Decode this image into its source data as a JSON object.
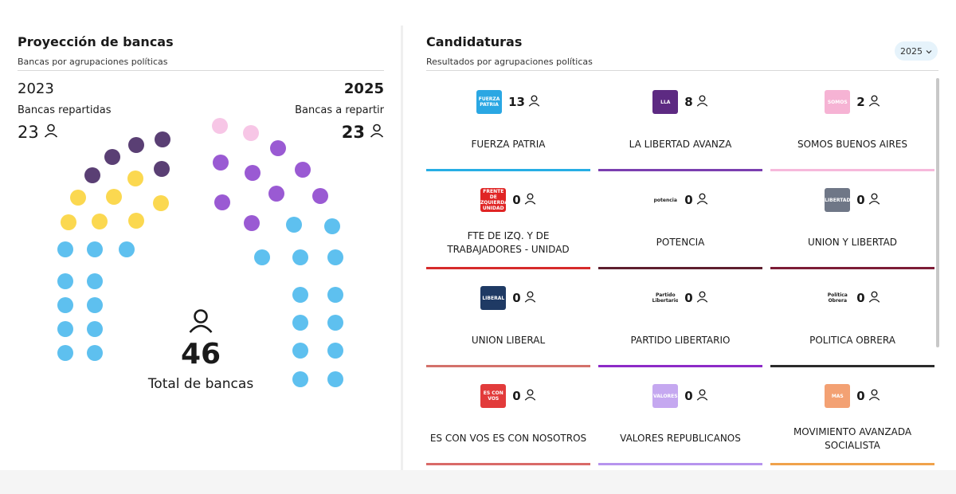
{
  "left": {
    "title": "Proyección de bancas",
    "subtitle": "Bancas por agrupaciones políticas",
    "year_prev": "2023",
    "year_next": "2025",
    "label_prev": "Bancas repartidas",
    "label_next": "Bancas a repartir",
    "count_prev": "23",
    "count_next": "23",
    "total_number": "46",
    "total_label": "Total de bancas",
    "person_icon": "person-icon"
  },
  "seat_colors": {
    "fuerza_patria": "#5ec0ef",
    "libertad_avanza": "#9a5ad3",
    "somos": "#f7c6e6",
    "prev_yellow": "#fbd850",
    "prev_dark": "#5a3f74",
    "text": "#1a1a1a"
  },
  "right": {
    "title": "Candidaturas",
    "subtitle": "Resultados por agrupaciones políticas",
    "year_select_value": "2025",
    "year_select_icon": "chevron-down-icon"
  },
  "parties": [
    {
      "name": "FUERZA PATRIA",
      "seats": "13",
      "bar_color": "#27aee4",
      "logo_bg": "#2aa7e3",
      "logo_text": "FUERZA PATRIA"
    },
    {
      "name": "LA LIBERTAD AVANZA",
      "seats": "8",
      "bar_color": "#7b3fb0",
      "logo_bg": "#5d2a82",
      "logo_text": "LLA"
    },
    {
      "name": "SOMOS BUENOS AIRES",
      "seats": "2",
      "bar_color": "#f6b9db",
      "logo_bg": "#f6b3d4",
      "logo_text": "SOMOS"
    },
    {
      "name": "FTE DE IZQ. Y DE TRABAJADORES - UNIDAD",
      "seats": "0",
      "bar_color": "#d62b2b",
      "logo_bg": "#e02424",
      "logo_text": "FRENTE DE IZQUIERDA UNIDAD"
    },
    {
      "name": "POTENCIA",
      "seats": "0",
      "bar_color": "#5e1f2e",
      "logo_bg": "#ffffff",
      "logo_text": "potencia"
    },
    {
      "name": "UNION Y LIBERTAD",
      "seats": "0",
      "bar_color": "#7d1c36",
      "logo_bg": "#6f7787",
      "logo_text": "LIBERTAD"
    },
    {
      "name": "UNION LIBERAL",
      "seats": "0",
      "bar_color": "#d3716b",
      "logo_bg": "#1f3a64",
      "logo_text": "LIBERAL"
    },
    {
      "name": "PARTIDO LIBERTARIO",
      "seats": "0",
      "bar_color": "#8d2ac7",
      "logo_bg": "#ffffff",
      "logo_text": "Partido Libertario"
    },
    {
      "name": "POLITICA OBRERA",
      "seats": "0",
      "bar_color": "#2b2b2b",
      "logo_bg": "#ffffff",
      "logo_text": "Política Obrera"
    },
    {
      "name": "ES CON VOS ES CON NOSOTROS",
      "seats": "0",
      "bar_color": "#d96a68",
      "logo_bg": "#e23b3b",
      "logo_text": "ES CON VOS"
    },
    {
      "name": "VALORES REPUBLICANOS",
      "seats": "0",
      "bar_color": "#b794ee",
      "logo_bg": "#c5a8f0",
      "logo_text": "VALORES"
    },
    {
      "name": "MOVIMIENTO AVANZADA SOCIALISTA",
      "seats": "0",
      "bar_color": "#f0a24b",
      "logo_bg": "#f3a173",
      "logo_text": "MAS"
    }
  ]
}
